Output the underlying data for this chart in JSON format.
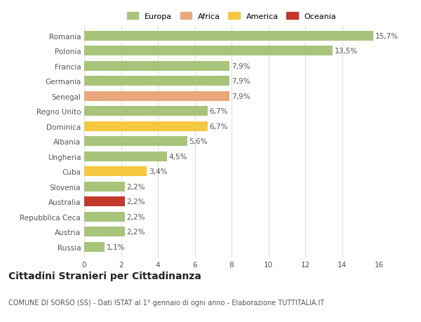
{
  "countries": [
    "Romania",
    "Polonia",
    "Francia",
    "Germania",
    "Senegal",
    "Regno Unito",
    "Dominica",
    "Albania",
    "Ungheria",
    "Cuba",
    "Slovenia",
    "Australia",
    "Repubblica Ceca",
    "Austria",
    "Russia"
  ],
  "values": [
    15.7,
    13.5,
    7.9,
    7.9,
    7.9,
    6.7,
    6.7,
    5.6,
    4.5,
    3.4,
    2.2,
    2.2,
    2.2,
    2.2,
    1.1
  ],
  "labels": [
    "15,7%",
    "13,5%",
    "7,9%",
    "7,9%",
    "7,9%",
    "6,7%",
    "6,7%",
    "5,6%",
    "4,5%",
    "3,4%",
    "2,2%",
    "2,2%",
    "2,2%",
    "2,2%",
    "1,1%"
  ],
  "colors": [
    "#a8c47a",
    "#a8c47a",
    "#a8c47a",
    "#a8c47a",
    "#e8a87c",
    "#a8c47a",
    "#f5c842",
    "#a8c47a",
    "#a8c47a",
    "#f5c842",
    "#a8c47a",
    "#c0392b",
    "#a8c47a",
    "#a8c47a",
    "#a8c47a"
  ],
  "legend": [
    {
      "label": "Europa",
      "color": "#a8c47a"
    },
    {
      "label": "Africa",
      "color": "#e8a87c"
    },
    {
      "label": "America",
      "color": "#f5c842"
    },
    {
      "label": "Oceania",
      "color": "#c0392b"
    }
  ],
  "title": "Cittadini Stranieri per Cittadinanza",
  "subtitle": "COMUNE DI SORSO (SS) - Dati ISTAT al 1° gennaio di ogni anno - Elaborazione TUTTITALIA.IT",
  "xlim": [
    0,
    16
  ],
  "xticks": [
    0,
    2,
    4,
    6,
    8,
    10,
    12,
    14,
    16
  ],
  "background_color": "#ffffff",
  "grid_color": "#dddddd",
  "bar_height": 0.65,
  "label_fontsize": 7.5,
  "tick_fontsize": 7.5,
  "title_fontsize": 10,
  "subtitle_fontsize": 7,
  "legend_fontsize": 8
}
